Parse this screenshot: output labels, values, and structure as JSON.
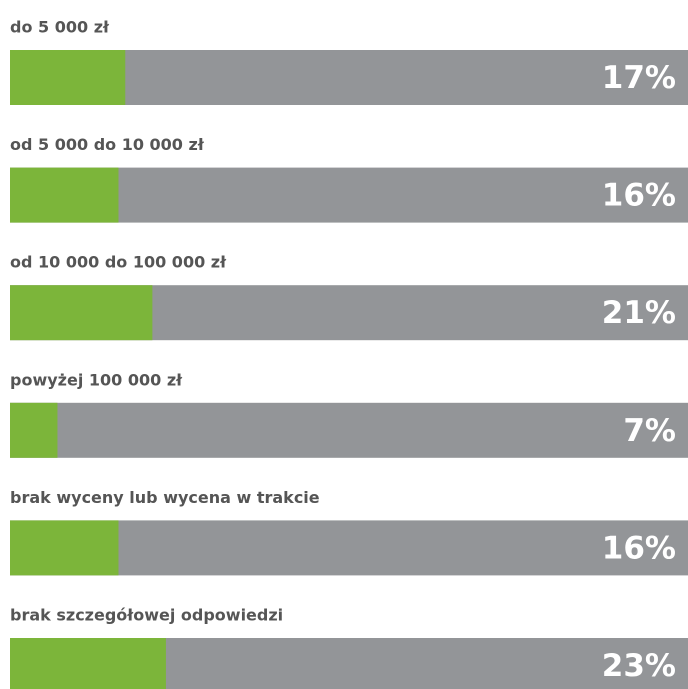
{
  "chart_data": {
    "type": "bar",
    "categories": [
      "do 5 000 zł",
      "od 5 000 do 10 000 zł",
      "od 10 000 do 100 000 zł",
      "powyżej 100 000 zł",
      "brak wyceny lub wycena w trakcie",
      "brak szczegółowej odpowiedzi"
    ],
    "values": [
      17,
      16,
      21,
      7,
      16,
      23
    ],
    "value_labels": [
      "17%",
      "16%",
      "21%",
      "7%",
      "16%",
      "23%"
    ],
    "xlim": [
      0,
      100
    ],
    "color": "#7cb53a",
    "track_color": "#939598"
  }
}
